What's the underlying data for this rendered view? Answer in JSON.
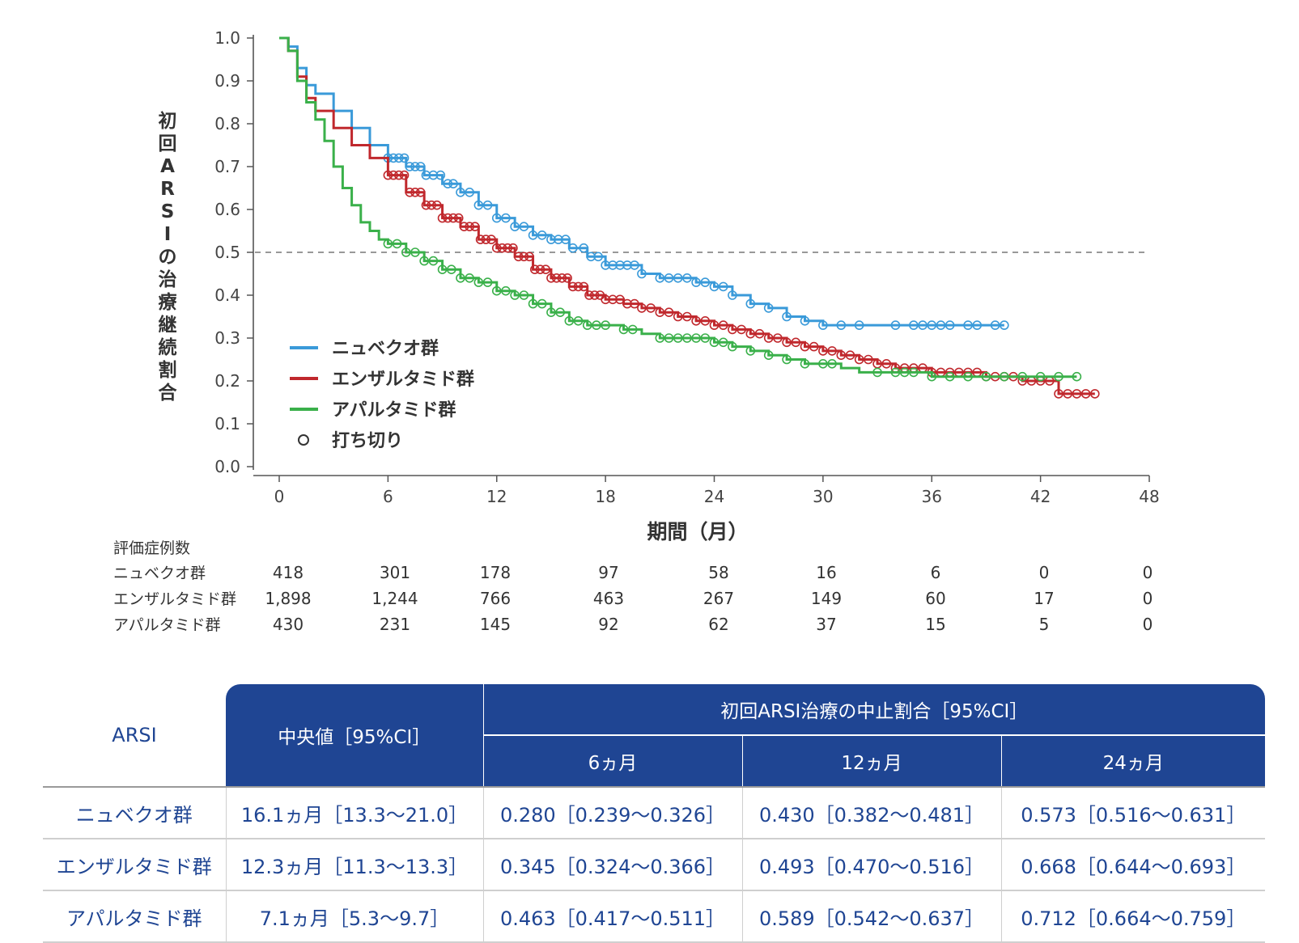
{
  "chart_data": {
    "type": "line",
    "xlabel": "期間（月）",
    "ylabel": "初回ARSIの治療継続割合",
    "xlim": [
      0,
      48
    ],
    "ylim": [
      0,
      1.0
    ],
    "x_ticks": [
      0,
      6,
      12,
      18,
      24,
      30,
      36,
      42,
      48
    ],
    "y_ticks": [
      0.0,
      0.1,
      0.2,
      0.3,
      0.4,
      0.5,
      0.6,
      0.7,
      0.8,
      0.9,
      1.0
    ],
    "reference_line_y": 0.5,
    "legend": {
      "position": "bottom-left",
      "censor_label": "打ち切り",
      "items": [
        {
          "name": "ニュベクオ群",
          "color": "#3a9ad9"
        },
        {
          "name": "エンザルタミド群",
          "color": "#c0282d"
        },
        {
          "name": "アパルタミド群",
          "color": "#3ab04a"
        }
      ]
    },
    "series": [
      {
        "name": "ニュベクオ群",
        "color": "#3a9ad9",
        "x": [
          0,
          0.5,
          1,
          1.5,
          2,
          3,
          4,
          5,
          6,
          7,
          8,
          9,
          10,
          11,
          12,
          13,
          14,
          15,
          16,
          17,
          18,
          19,
          20,
          21,
          22,
          23,
          24,
          25,
          26,
          27,
          28,
          29,
          30,
          31,
          32,
          33,
          34,
          35,
          36,
          37,
          38,
          39,
          40
        ],
        "y": [
          1.0,
          0.98,
          0.93,
          0.89,
          0.87,
          0.83,
          0.79,
          0.75,
          0.72,
          0.7,
          0.68,
          0.66,
          0.64,
          0.61,
          0.58,
          0.56,
          0.54,
          0.53,
          0.51,
          0.49,
          0.47,
          0.47,
          0.45,
          0.44,
          0.44,
          0.43,
          0.42,
          0.4,
          0.38,
          0.37,
          0.35,
          0.34,
          0.33,
          0.33,
          0.33,
          0.33,
          0.33,
          0.33,
          0.33,
          0.33,
          0.33,
          0.33,
          0.33
        ],
        "censored_x": [
          6,
          6.3,
          6.6,
          6.9,
          7.2,
          7.5,
          7.8,
          8.1,
          8.5,
          8.9,
          9.3,
          9.6,
          10,
          10.5,
          11,
          11.5,
          12,
          12.5,
          13,
          13.5,
          14,
          14.5,
          15,
          15.4,
          15.8,
          16.2,
          16.8,
          17.2,
          17.6,
          18,
          18.4,
          18.8,
          19.2,
          19.6,
          20,
          21,
          21.5,
          22,
          22.5,
          23,
          23.5,
          24,
          24.5,
          25,
          26,
          27,
          28,
          29,
          30,
          31,
          32,
          34,
          35,
          35.5,
          36,
          36.5,
          37,
          38,
          38.5,
          39.5,
          40
        ]
      },
      {
        "name": "エンザルタミド群",
        "color": "#c0282d",
        "x": [
          0,
          0.5,
          1,
          1.5,
          2,
          3,
          4,
          5,
          6,
          7,
          8,
          9,
          10,
          11,
          12,
          13,
          14,
          15,
          16,
          17,
          18,
          19,
          20,
          21,
          22,
          23,
          24,
          25,
          26,
          27,
          28,
          29,
          30,
          31,
          32,
          33,
          34,
          35,
          36,
          37,
          38,
          39,
          40,
          41,
          42,
          43,
          44,
          45
        ],
        "y": [
          1.0,
          0.97,
          0.91,
          0.86,
          0.83,
          0.79,
          0.75,
          0.72,
          0.68,
          0.64,
          0.61,
          0.58,
          0.56,
          0.53,
          0.51,
          0.49,
          0.46,
          0.44,
          0.42,
          0.4,
          0.39,
          0.38,
          0.37,
          0.36,
          0.35,
          0.34,
          0.33,
          0.32,
          0.31,
          0.3,
          0.29,
          0.28,
          0.27,
          0.26,
          0.25,
          0.24,
          0.23,
          0.23,
          0.22,
          0.22,
          0.22,
          0.21,
          0.21,
          0.2,
          0.2,
          0.17,
          0.17,
          0.17
        ],
        "censored_x": [
          6,
          6.3,
          6.6,
          6.9,
          7.2,
          7.5,
          7.8,
          8.1,
          8.4,
          8.7,
          9,
          9.3,
          9.6,
          9.9,
          10.2,
          10.5,
          10.8,
          11.1,
          11.4,
          11.7,
          12,
          12.3,
          12.6,
          12.9,
          13.2,
          13.5,
          13.8,
          14.1,
          14.4,
          14.7,
          15,
          15.3,
          15.6,
          15.9,
          16.2,
          16.5,
          16.8,
          17.1,
          17.4,
          17.7,
          18,
          18.4,
          18.8,
          19.2,
          19.6,
          20,
          20.5,
          21,
          21.5,
          22,
          22.5,
          23,
          23.5,
          24,
          24.5,
          25,
          25.5,
          26,
          26.5,
          27,
          27.5,
          28,
          28.5,
          29,
          29.5,
          30,
          30.5,
          31,
          31.5,
          32,
          32.5,
          33,
          33.5,
          34,
          34.5,
          35,
          35.5,
          36,
          36.5,
          37,
          37.5,
          38,
          38.5,
          39,
          39.5,
          40,
          40.5,
          41,
          41.5,
          42,
          42.5,
          43,
          43.5,
          44,
          44.5,
          45
        ]
      },
      {
        "name": "アパルタミド群",
        "color": "#3ab04a",
        "x": [
          0,
          0.5,
          1,
          1.5,
          2,
          2.5,
          3,
          3.5,
          4,
          4.5,
          5,
          5.5,
          6,
          7,
          8,
          9,
          10,
          11,
          12,
          13,
          14,
          15,
          16,
          17,
          18,
          19,
          20,
          21,
          22,
          23,
          24,
          25,
          26,
          27,
          28,
          29,
          30,
          31,
          32,
          33,
          34,
          35,
          36,
          37,
          38,
          39,
          40,
          41,
          42,
          43,
          44
        ],
        "y": [
          1.0,
          0.97,
          0.9,
          0.85,
          0.81,
          0.76,
          0.7,
          0.65,
          0.61,
          0.57,
          0.55,
          0.53,
          0.52,
          0.5,
          0.48,
          0.46,
          0.44,
          0.43,
          0.41,
          0.4,
          0.38,
          0.36,
          0.34,
          0.33,
          0.33,
          0.32,
          0.31,
          0.3,
          0.3,
          0.3,
          0.29,
          0.28,
          0.27,
          0.26,
          0.25,
          0.24,
          0.24,
          0.23,
          0.22,
          0.22,
          0.22,
          0.22,
          0.21,
          0.21,
          0.21,
          0.21,
          0.21,
          0.21,
          0.21,
          0.21,
          0.21
        ],
        "censored_x": [
          6,
          6.5,
          7,
          7.5,
          8,
          8.5,
          9,
          9.5,
          10,
          10.5,
          11,
          11.5,
          12,
          12.5,
          13,
          13.5,
          14,
          14.5,
          15,
          15.5,
          16,
          16.5,
          17,
          17.5,
          18,
          19,
          19.5,
          21,
          21.5,
          22,
          22.5,
          23,
          23.5,
          24,
          24.5,
          25,
          26,
          27,
          28,
          29,
          30,
          30.5,
          33,
          34,
          34.5,
          35,
          36,
          37,
          38,
          39,
          40,
          41,
          42,
          43,
          44
        ]
      }
    ],
    "risk_table": {
      "header": "評価症例数",
      "times": [
        0,
        6,
        12,
        18,
        24,
        30,
        36,
        42,
        48
      ],
      "rows": [
        {
          "name": "ニュベクオ群",
          "values": [
            "418",
            "301",
            "178",
            "97",
            "58",
            "16",
            "6",
            "0",
            "0"
          ]
        },
        {
          "name": "エンザルタミド群",
          "values": [
            "1,898",
            "1,244",
            "766",
            "463",
            "267",
            "149",
            "60",
            "17",
            "0"
          ]
        },
        {
          "name": "アパルタミド群",
          "values": [
            "430",
            "231",
            "145",
            "92",
            "62",
            "37",
            "15",
            "5",
            "0"
          ]
        }
      ]
    }
  },
  "summary_table": {
    "corner": "ARSI",
    "median_header": "中央値［95%CI］",
    "rate_header": "初回ARSI治療の中止割合［95%CI］",
    "sub_headers": [
      "6ヵ月",
      "12ヵ月",
      "24ヵ月"
    ],
    "rows": [
      {
        "label": "ニュベクオ群",
        "median": "16.1ヵ月［13.3〜21.0］",
        "m6": "0.280［0.239〜0.326］",
        "m12": "0.430［0.382〜0.481］",
        "m24": "0.573［0.516〜0.631］"
      },
      {
        "label": "エンザルタミド群",
        "median": "12.3ヵ月［11.3〜13.3］",
        "m6": "0.345［0.324〜0.366］",
        "m12": "0.493［0.470〜0.516］",
        "m24": "0.668［0.644〜0.693］"
      },
      {
        "label": "アパルタミド群",
        "median": "7.1ヵ月［5.3〜9.7］",
        "m6": "0.463［0.417〜0.511］",
        "m12": "0.589［0.542〜0.637］",
        "m24": "0.712［0.664〜0.759］"
      }
    ]
  }
}
